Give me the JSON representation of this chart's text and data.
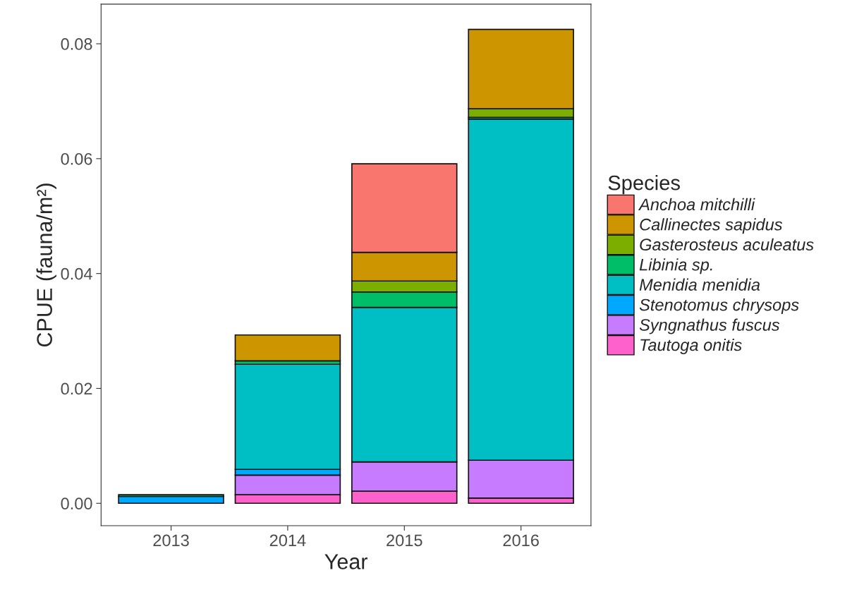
{
  "chart_data": {
    "type": "bar",
    "stacked": true,
    "xlabel": "Year",
    "ylabel": "CPUE (fauna/m²)",
    "legend_title": "Species",
    "legend": "right",
    "categories": [
      "2013",
      "2014",
      "2015",
      "2016"
    ],
    "series": [
      {
        "name": "Tautoga onitis",
        "color": "#ff61cc",
        "values": [
          null,
          0.0015,
          0.0021,
          0.0009
        ]
      },
      {
        "name": "Syngnathus fuscus",
        "color": "#c77cff",
        "values": [
          null,
          0.0034,
          0.0051,
          0.0066
        ]
      },
      {
        "name": "Stenotomus chrysops",
        "color": "#00a9ff",
        "values": [
          0.0012,
          0.001,
          null,
          null
        ]
      },
      {
        "name": "Menidia menidia",
        "color": "#00bfc4",
        "values": [
          null,
          0.0183,
          0.0269,
          0.0594
        ]
      },
      {
        "name": "Libinia sp.",
        "color": "#00be67",
        "values": [
          0.0003,
          0.0006,
          0.0027,
          0.0003
        ]
      },
      {
        "name": "Gasterosteus aculeatus",
        "color": "#7cae00",
        "values": [
          null,
          null,
          0.0019,
          0.0015
        ]
      },
      {
        "name": "Callinectes sapidus",
        "color": "#cd9600",
        "values": [
          null,
          0.0045,
          0.005,
          0.0138
        ]
      },
      {
        "name": "Anchoa mitchilli",
        "color": "#f8766d",
        "values": [
          null,
          null,
          0.0154,
          null
        ]
      }
    ],
    "ylim": [
      -0.0039,
      0.0869
    ],
    "yticks": [
      {
        "value": 0,
        "label": "0.00"
      },
      {
        "value": 0.02,
        "label": "0.02"
      },
      {
        "value": 0.04,
        "label": "0.04"
      },
      {
        "value": 0.06,
        "label": "0.06"
      },
      {
        "value": 0.08,
        "label": "0.08"
      }
    ],
    "grid": false
  }
}
